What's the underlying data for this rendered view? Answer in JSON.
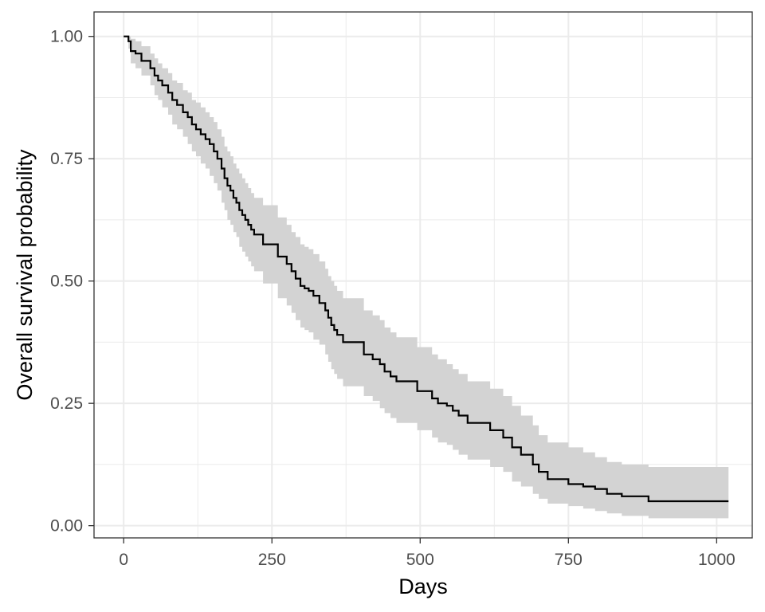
{
  "chart_data": {
    "type": "line",
    "title": "",
    "xlabel": "Days",
    "ylabel": "Overall survival probability",
    "xlim": [
      -50,
      1060
    ],
    "ylim": [
      -0.025,
      1.05
    ],
    "xticks": [
      0,
      250,
      500,
      750,
      1000
    ],
    "xtick_labels": [
      "0",
      "250",
      "500",
      "750",
      "1000"
    ],
    "yticks": [
      0,
      0.25,
      0.5,
      0.75,
      1.0
    ],
    "ytick_labels": [
      "0.00",
      "0.25",
      "0.50",
      "0.75",
      "1.00"
    ],
    "grid": true,
    "legend": "none",
    "colors": {
      "line": "#000000",
      "band": "#d3d3d3",
      "grid": "#ebebeb",
      "border": "#333333"
    },
    "series": [
      {
        "step": "post",
        "x": [
          0,
          8,
          12,
          20,
          30,
          45,
          52,
          58,
          65,
          75,
          82,
          90,
          100,
          108,
          115,
          122,
          130,
          138,
          145,
          152,
          158,
          165,
          170,
          175,
          180,
          185,
          190,
          195,
          200,
          205,
          210,
          215,
          220,
          228,
          235,
          260,
          275,
          283,
          290,
          298,
          305,
          312,
          320,
          330,
          340,
          345,
          350,
          355,
          360,
          370,
          385,
          395,
          405,
          420,
          432,
          440,
          450,
          460,
          465,
          475,
          495,
          520,
          530,
          545,
          555,
          565,
          580,
          595,
          618,
          640,
          655,
          665,
          670,
          690,
          700,
          715,
          738,
          750,
          775,
          795,
          815,
          840,
          885,
          1020
        ],
        "y": [
          1.0,
          0.99,
          0.97,
          0.965,
          0.95,
          0.935,
          0.92,
          0.91,
          0.9,
          0.885,
          0.87,
          0.86,
          0.845,
          0.835,
          0.82,
          0.81,
          0.8,
          0.79,
          0.78,
          0.765,
          0.75,
          0.73,
          0.71,
          0.695,
          0.685,
          0.67,
          0.66,
          0.645,
          0.635,
          0.625,
          0.615,
          0.605,
          0.595,
          0.595,
          0.575,
          0.55,
          0.535,
          0.52,
          0.505,
          0.49,
          0.485,
          0.48,
          0.47,
          0.455,
          0.44,
          0.425,
          0.41,
          0.4,
          0.39,
          0.375,
          0.375,
          0.375,
          0.35,
          0.34,
          0.33,
          0.315,
          0.305,
          0.295,
          0.295,
          0.295,
          0.275,
          0.26,
          0.25,
          0.245,
          0.235,
          0.225,
          0.21,
          0.21,
          0.195,
          0.18,
          0.16,
          0.16,
          0.145,
          0.125,
          0.11,
          0.095,
          0.095,
          0.085,
          0.08,
          0.075,
          0.065,
          0.06,
          0.05,
          0.05
        ],
        "lower": [
          1.0,
          0.975,
          0.945,
          0.935,
          0.92,
          0.9,
          0.88,
          0.87,
          0.855,
          0.84,
          0.82,
          0.81,
          0.795,
          0.78,
          0.765,
          0.755,
          0.74,
          0.73,
          0.715,
          0.7,
          0.685,
          0.66,
          0.645,
          0.625,
          0.615,
          0.6,
          0.59,
          0.57,
          0.56,
          0.55,
          0.54,
          0.53,
          0.52,
          0.52,
          0.495,
          0.465,
          0.45,
          0.435,
          0.42,
          0.405,
          0.4,
          0.395,
          0.38,
          0.37,
          0.35,
          0.335,
          0.32,
          0.31,
          0.3,
          0.285,
          0.285,
          0.285,
          0.265,
          0.255,
          0.24,
          0.23,
          0.22,
          0.21,
          0.21,
          0.21,
          0.195,
          0.18,
          0.17,
          0.165,
          0.155,
          0.145,
          0.135,
          0.135,
          0.12,
          0.11,
          0.09,
          0.09,
          0.08,
          0.065,
          0.055,
          0.045,
          0.045,
          0.04,
          0.035,
          0.03,
          0.025,
          0.02,
          0.015,
          0.015
        ],
        "upper": [
          1.0,
          1.0,
          0.995,
          0.99,
          0.98,
          0.965,
          0.955,
          0.945,
          0.935,
          0.925,
          0.91,
          0.905,
          0.89,
          0.885,
          0.87,
          0.865,
          0.855,
          0.845,
          0.835,
          0.825,
          0.81,
          0.795,
          0.775,
          0.765,
          0.755,
          0.74,
          0.73,
          0.72,
          0.71,
          0.7,
          0.69,
          0.68,
          0.67,
          0.67,
          0.655,
          0.63,
          0.615,
          0.6,
          0.59,
          0.575,
          0.57,
          0.565,
          0.555,
          0.54,
          0.525,
          0.51,
          0.5,
          0.49,
          0.48,
          0.465,
          0.465,
          0.465,
          0.44,
          0.43,
          0.42,
          0.405,
          0.395,
          0.385,
          0.385,
          0.385,
          0.365,
          0.35,
          0.34,
          0.33,
          0.32,
          0.31,
          0.295,
          0.295,
          0.28,
          0.265,
          0.245,
          0.245,
          0.225,
          0.205,
          0.185,
          0.17,
          0.17,
          0.16,
          0.15,
          0.14,
          0.13,
          0.125,
          0.12,
          0.12
        ]
      }
    ]
  }
}
